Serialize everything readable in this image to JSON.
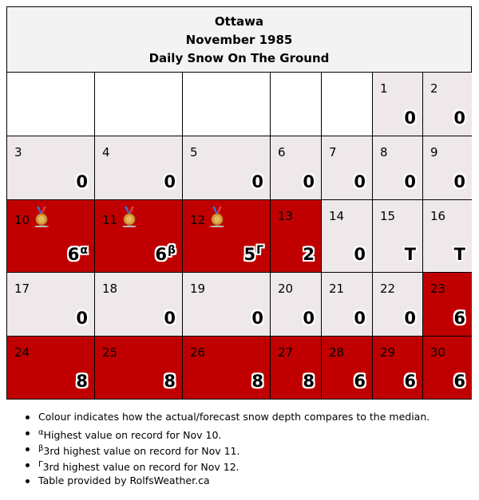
{
  "header": {
    "city": "Ottawa",
    "month": "November 1985",
    "subtitle": "Daily Snow On The Ground"
  },
  "colors": {
    "above_median": "#c00000",
    "median": "#eee8ea",
    "empty": "#ffffff"
  },
  "leading_blank_days": 5,
  "days": [
    {
      "day": "1",
      "value": "0",
      "level": "median"
    },
    {
      "day": "2",
      "value": "0",
      "level": "median"
    },
    {
      "day": "3",
      "value": "0",
      "level": "median"
    },
    {
      "day": "4",
      "value": "0",
      "level": "median"
    },
    {
      "day": "5",
      "value": "0",
      "level": "median"
    },
    {
      "day": "6",
      "value": "0",
      "level": "median"
    },
    {
      "day": "7",
      "value": "0",
      "level": "median"
    },
    {
      "day": "8",
      "value": "0",
      "level": "median"
    },
    {
      "day": "9",
      "value": "0",
      "level": "median"
    },
    {
      "day": "10",
      "value": "6",
      "level": "above",
      "record": "α",
      "medal": "medal-icon"
    },
    {
      "day": "11",
      "value": "6",
      "level": "above",
      "record": "β",
      "medal": "medal-icon"
    },
    {
      "day": "12",
      "value": "5",
      "level": "above",
      "record": "Γ",
      "medal": "medal-icon"
    },
    {
      "day": "13",
      "value": "2",
      "level": "above"
    },
    {
      "day": "14",
      "value": "0",
      "level": "median"
    },
    {
      "day": "15",
      "value": "T",
      "level": "median"
    },
    {
      "day": "16",
      "value": "T",
      "level": "median"
    },
    {
      "day": "17",
      "value": "0",
      "level": "median"
    },
    {
      "day": "18",
      "value": "0",
      "level": "median"
    },
    {
      "day": "19",
      "value": "0",
      "level": "median"
    },
    {
      "day": "20",
      "value": "0",
      "level": "median"
    },
    {
      "day": "21",
      "value": "0",
      "level": "median"
    },
    {
      "day": "22",
      "value": "0",
      "level": "median"
    },
    {
      "day": "23",
      "value": "6",
      "level": "above"
    },
    {
      "day": "24",
      "value": "8",
      "level": "above"
    },
    {
      "day": "25",
      "value": "8",
      "level": "above"
    },
    {
      "day": "26",
      "value": "8",
      "level": "above"
    },
    {
      "day": "27",
      "value": "8",
      "level": "above"
    },
    {
      "day": "28",
      "value": "6",
      "level": "above"
    },
    {
      "day": "29",
      "value": "6",
      "level": "above"
    },
    {
      "day": "30",
      "value": "6",
      "level": "above"
    }
  ],
  "notes": [
    {
      "sup": "",
      "text": "Colour indicates how the actual/forecast snow depth compares to the median."
    },
    {
      "sup": "α",
      "text": "Highest value on record for Nov 10."
    },
    {
      "sup": "β",
      "text": "3rd highest value on record for Nov 11."
    },
    {
      "sup": "Γ",
      "text": "3rd highest value on record for Nov 12."
    },
    {
      "sup": "",
      "text": "Table provided by RolfsWeather.ca"
    }
  ]
}
